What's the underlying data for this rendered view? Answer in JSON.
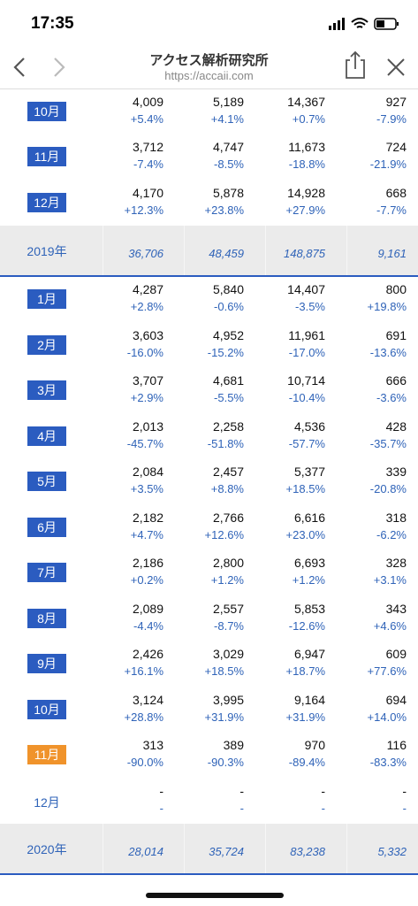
{
  "status_bar": {
    "time": "17:35"
  },
  "nav": {
    "title": "アクセス解析研究所",
    "url": "https://accaii.com"
  },
  "table": {
    "rows": [
      {
        "label": "10月",
        "badge_color": "#2b5cc0",
        "cells": [
          [
            "4,009",
            "+5.4%"
          ],
          [
            "5,189",
            "+4.1%"
          ],
          [
            "14,367",
            "+0.7%"
          ],
          [
            "927",
            "-7.9%"
          ]
        ]
      },
      {
        "label": "11月",
        "badge_color": "#2b5cc0",
        "cells": [
          [
            "3,712",
            "-7.4%"
          ],
          [
            "4,747",
            "-8.5%"
          ],
          [
            "11,673",
            "-18.8%"
          ],
          [
            "724",
            "-21.9%"
          ]
        ]
      },
      {
        "label": "12月",
        "badge_color": "#2b5cc0",
        "cells": [
          [
            "4,170",
            "+12.3%"
          ],
          [
            "5,878",
            "+23.8%"
          ],
          [
            "14,928",
            "+27.9%"
          ],
          [
            "668",
            "-7.7%"
          ]
        ]
      },
      {
        "label": "2019年",
        "total": [
          "36,706",
          "48,459",
          "148,875",
          "9,161"
        ]
      },
      {
        "label": "1月",
        "badge_color": "#2b5cc0",
        "cells": [
          [
            "4,287",
            "+2.8%"
          ],
          [
            "5,840",
            "-0.6%"
          ],
          [
            "14,407",
            "-3.5%"
          ],
          [
            "800",
            "+19.8%"
          ]
        ]
      },
      {
        "label": "2月",
        "badge_color": "#2b5cc0",
        "cells": [
          [
            "3,603",
            "-16.0%"
          ],
          [
            "4,952",
            "-15.2%"
          ],
          [
            "11,961",
            "-17.0%"
          ],
          [
            "691",
            "-13.6%"
          ]
        ]
      },
      {
        "label": "3月",
        "badge_color": "#2b5cc0",
        "cells": [
          [
            "3,707",
            "+2.9%"
          ],
          [
            "4,681",
            "-5.5%"
          ],
          [
            "10,714",
            "-10.4%"
          ],
          [
            "666",
            "-3.6%"
          ]
        ]
      },
      {
        "label": "4月",
        "badge_color": "#2b5cc0",
        "cells": [
          [
            "2,013",
            "-45.7%"
          ],
          [
            "2,258",
            "-51.8%"
          ],
          [
            "4,536",
            "-57.7%"
          ],
          [
            "428",
            "-35.7%"
          ]
        ]
      },
      {
        "label": "5月",
        "badge_color": "#2b5cc0",
        "cells": [
          [
            "2,084",
            "+3.5%"
          ],
          [
            "2,457",
            "+8.8%"
          ],
          [
            "5,377",
            "+18.5%"
          ],
          [
            "339",
            "-20.8%"
          ]
        ]
      },
      {
        "label": "6月",
        "badge_color": "#2b5cc0",
        "cells": [
          [
            "2,182",
            "+4.7%"
          ],
          [
            "2,766",
            "+12.6%"
          ],
          [
            "6,616",
            "+23.0%"
          ],
          [
            "318",
            "-6.2%"
          ]
        ]
      },
      {
        "label": "7月",
        "badge_color": "#2b5cc0",
        "cells": [
          [
            "2,186",
            "+0.2%"
          ],
          [
            "2,800",
            "+1.2%"
          ],
          [
            "6,693",
            "+1.2%"
          ],
          [
            "328",
            "+3.1%"
          ]
        ]
      },
      {
        "label": "8月",
        "badge_color": "#2b5cc0",
        "cells": [
          [
            "2,089",
            "-4.4%"
          ],
          [
            "2,557",
            "-8.7%"
          ],
          [
            "5,853",
            "-12.6%"
          ],
          [
            "343",
            "+4.6%"
          ]
        ]
      },
      {
        "label": "9月",
        "badge_color": "#2b5cc0",
        "cells": [
          [
            "2,426",
            "+16.1%"
          ],
          [
            "3,029",
            "+18.5%"
          ],
          [
            "6,947",
            "+18.7%"
          ],
          [
            "609",
            "+77.6%"
          ]
        ]
      },
      {
        "label": "10月",
        "badge_color": "#2b5cc0",
        "cells": [
          [
            "3,124",
            "+28.8%"
          ],
          [
            "3,995",
            "+31.9%"
          ],
          [
            "9,164",
            "+31.9%"
          ],
          [
            "694",
            "+14.0%"
          ]
        ]
      },
      {
        "label": "11月",
        "badge_color": "#f0932b",
        "cells": [
          [
            "313",
            "-90.0%"
          ],
          [
            "389",
            "-90.3%"
          ],
          [
            "970",
            "-89.4%"
          ],
          [
            "116",
            "-83.3%"
          ]
        ]
      },
      {
        "label": "12月",
        "cells": [
          [
            "-",
            "-"
          ],
          [
            "-",
            "-"
          ],
          [
            "-",
            "-"
          ],
          [
            "-",
            "-"
          ]
        ]
      },
      {
        "label": "2020年",
        "total": [
          "28,014",
          "35,724",
          "83,238",
          "5,332"
        ]
      }
    ]
  }
}
